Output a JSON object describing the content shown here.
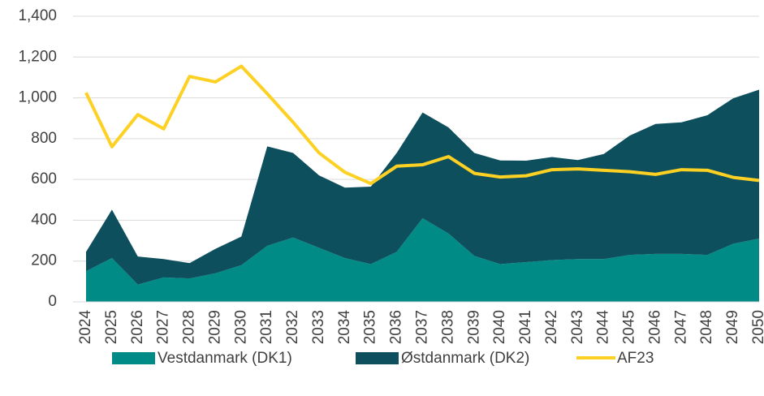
{
  "chart_data": {
    "type": "stacked_area_line",
    "categories": [
      "2024",
      "2025",
      "2026",
      "2027",
      "2028",
      "2029",
      "2030",
      "2031",
      "2032",
      "2033",
      "2034",
      "2035",
      "2036",
      "2037",
      "2038",
      "2039",
      "2040",
      "2041",
      "2042",
      "2043",
      "2044",
      "2045",
      "2046",
      "2047",
      "2048",
      "2049",
      "2050"
    ],
    "series": [
      {
        "name": "Vestdanmark (DK1)",
        "color": "#008b87",
        "kind": "area",
        "values": [
          150,
          215,
          85,
          120,
          115,
          140,
          180,
          275,
          315,
          265,
          215,
          185,
          245,
          410,
          335,
          225,
          185,
          195,
          205,
          210,
          210,
          230,
          235,
          235,
          230,
          285,
          310
        ]
      },
      {
        "name": "Østdanmark (DK2)",
        "color": "#0d4f5c",
        "kind": "area",
        "values": [
          95,
          237,
          137,
          90,
          75,
          120,
          140,
          487,
          415,
          355,
          345,
          380,
          485,
          518,
          520,
          505,
          508,
          497,
          505,
          485,
          515,
          585,
          637,
          645,
          685,
          713,
          730
        ]
      },
      {
        "name": "AF23",
        "color": "#fdd123",
        "kind": "line",
        "values": [
          1025,
          760,
          918,
          848,
          1105,
          1078,
          1155,
          1020,
          880,
          730,
          635,
          580,
          665,
          672,
          712,
          630,
          612,
          618,
          648,
          652,
          645,
          638,
          625,
          648,
          645,
          610,
          595
        ]
      }
    ],
    "ylim": [
      0,
      1400
    ],
    "yticks": [
      0,
      200,
      400,
      600,
      800,
      {
        "value": 1000,
        "label": "1,000"
      },
      {
        "value": 1200,
        "label": "1,200"
      },
      {
        "value": 1400,
        "label": "1,400"
      }
    ],
    "grid": true,
    "legend": "bottom"
  }
}
